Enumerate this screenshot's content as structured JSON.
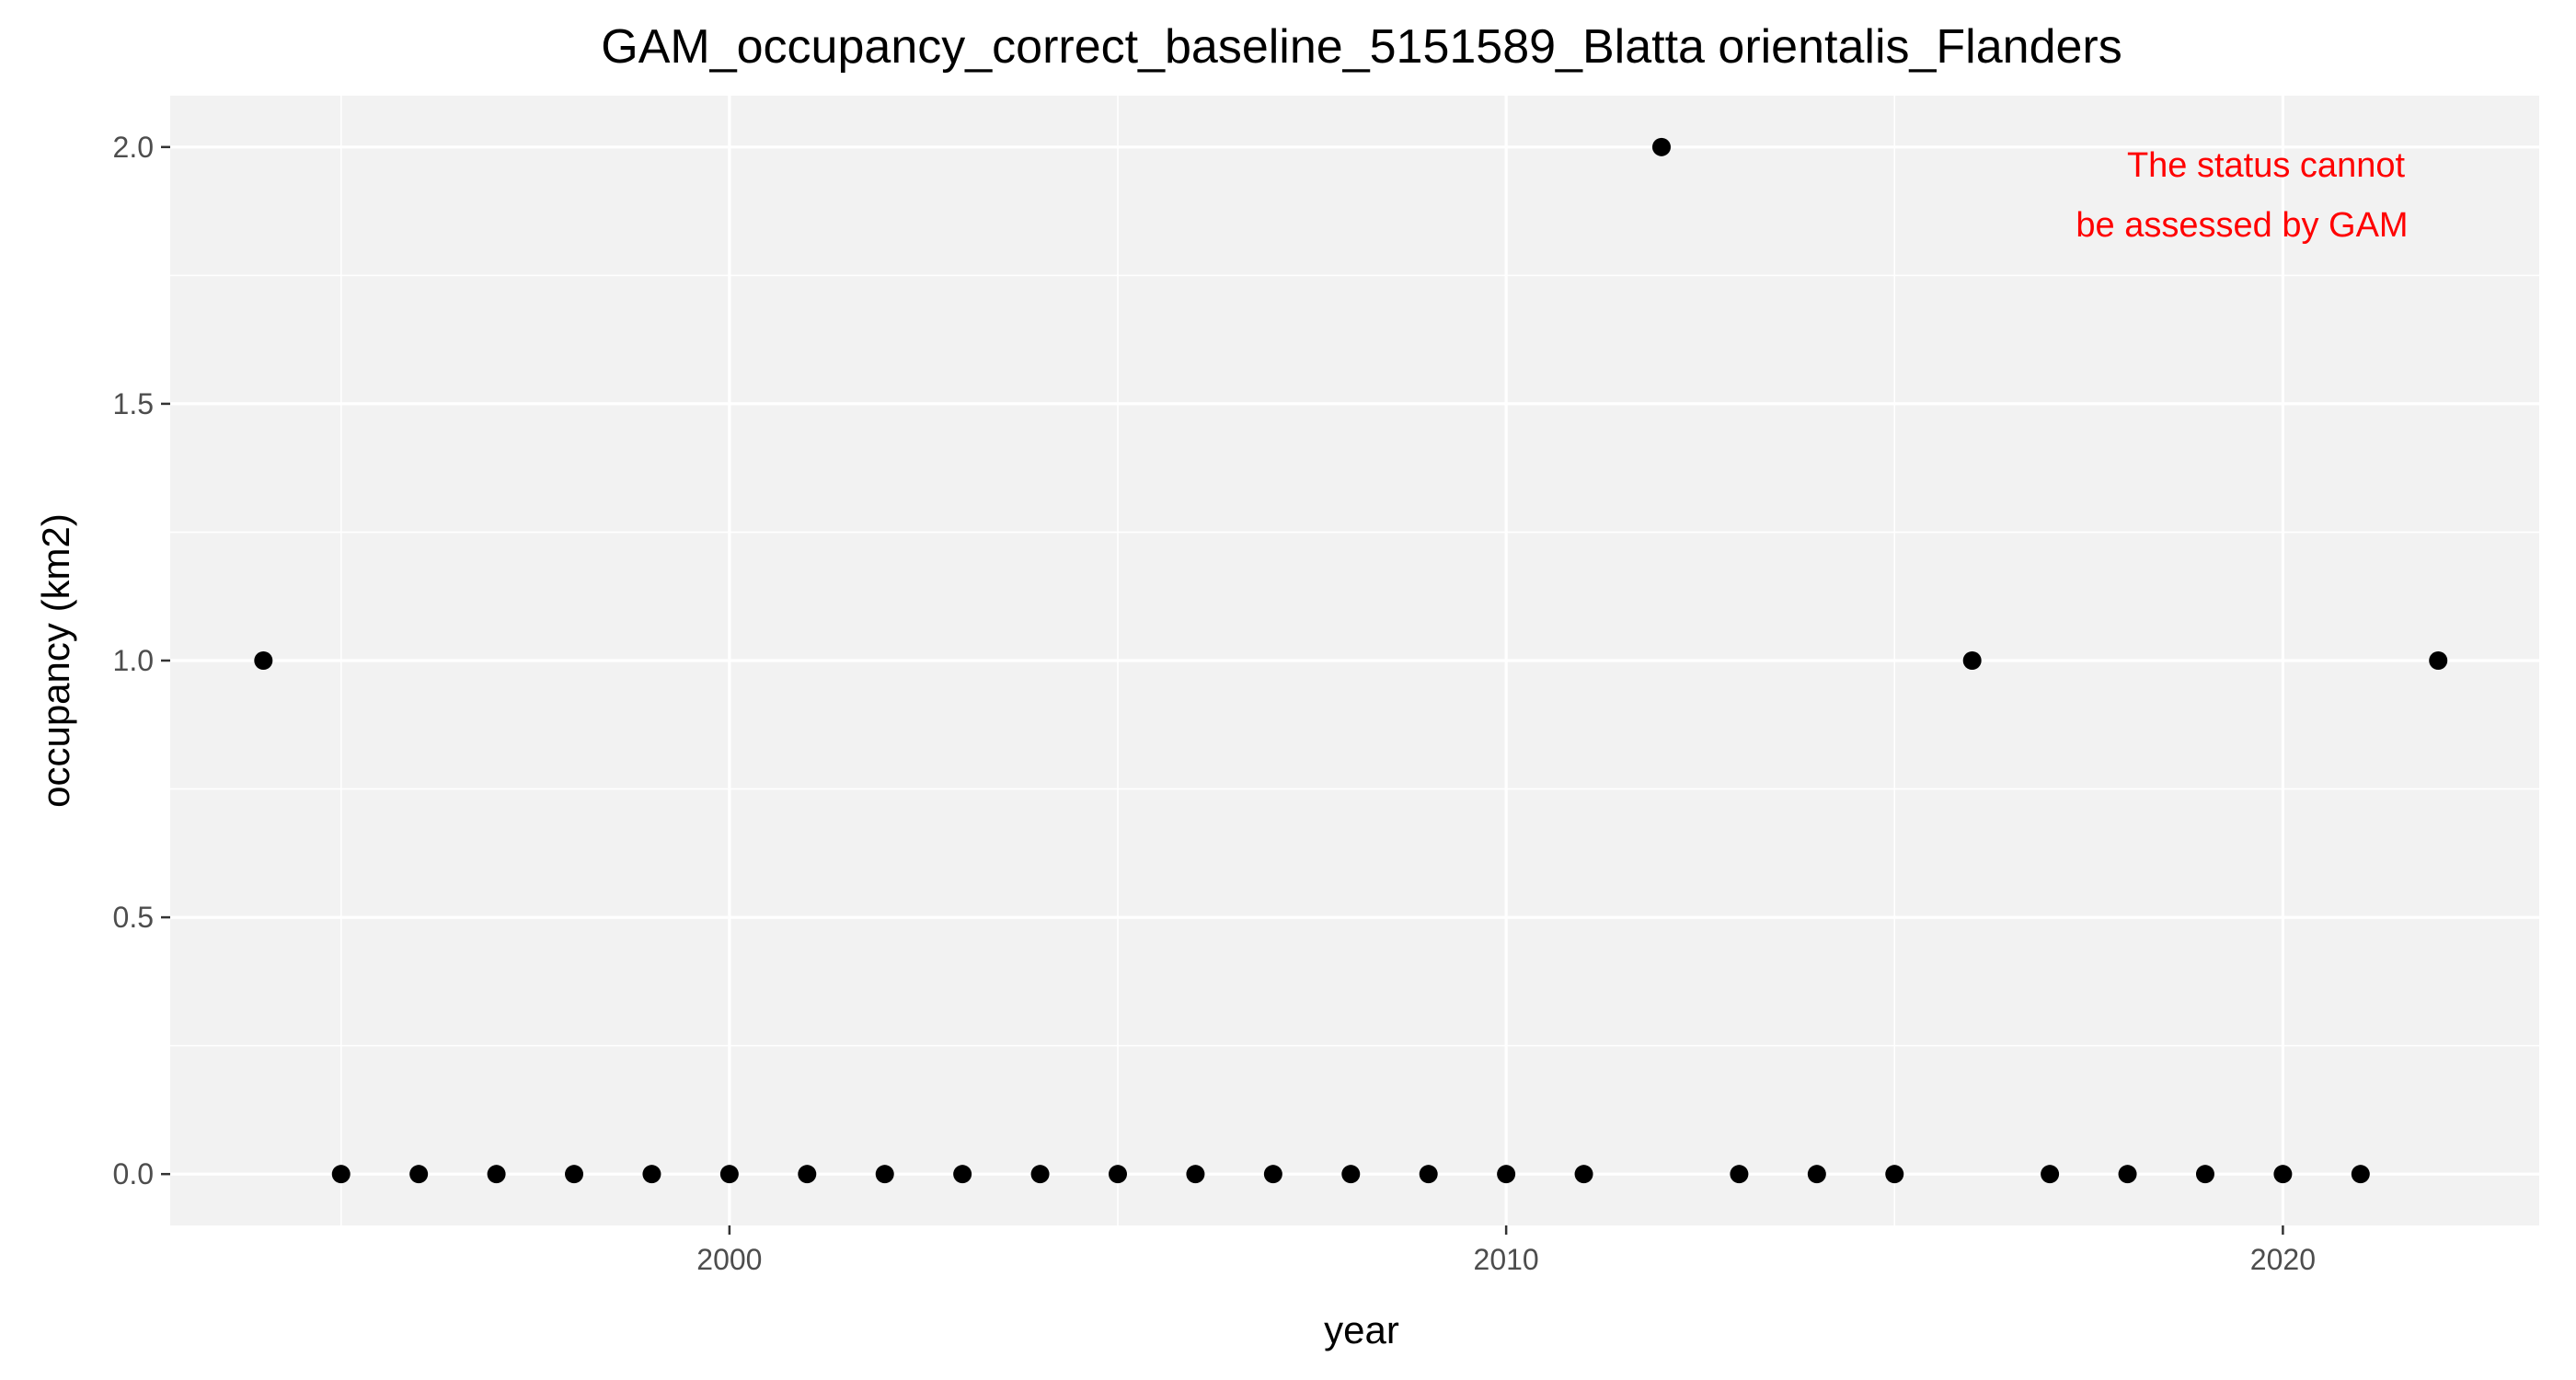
{
  "chart_data": {
    "type": "scatter",
    "title": "GAM_occupancy_correct_baseline_5151589_Blatta orientalis_Flanders",
    "xlabel": "year",
    "ylabel": "occupancy (km2)",
    "xlim": [
      1992.8,
      2023.3
    ],
    "ylim": [
      -0.1,
      2.1
    ],
    "x_ticks": [
      2000,
      2010,
      2020
    ],
    "x_tick_labels": [
      "2000",
      "2010",
      "2020"
    ],
    "x_minor_ticks": [
      1995,
      2005,
      2015
    ],
    "y_ticks": [
      0,
      0.5,
      1,
      1.5,
      2
    ],
    "y_tick_labels": [
      "0.0",
      "0.5",
      "1.0",
      "1.5",
      "2.0"
    ],
    "y_minor_ticks": [
      0.25,
      0.75,
      1.25,
      1.75
    ],
    "grid": true,
    "legend": "none",
    "point_color": "#000000",
    "panel_color": "#f2f2f2",
    "annotation": {
      "lines": [
        "The status cannot",
        "be assessed by GAM"
      ],
      "color": "#ff0000",
      "position": "top-right"
    },
    "x": [
      1994,
      1995,
      1996,
      1997,
      1998,
      1999,
      2000,
      2001,
      2002,
      2003,
      2004,
      2005,
      2006,
      2007,
      2008,
      2009,
      2010,
      2011,
      2012,
      2013,
      2014,
      2015,
      2016,
      2017,
      2018,
      2019,
      2020,
      2021,
      2022
    ],
    "y": [
      1,
      0,
      0,
      0,
      0,
      0,
      0,
      0,
      0,
      0,
      0,
      0,
      0,
      0,
      0,
      0,
      0,
      0,
      2,
      0,
      0,
      0,
      1,
      0,
      0,
      0,
      0,
      0,
      1
    ]
  }
}
